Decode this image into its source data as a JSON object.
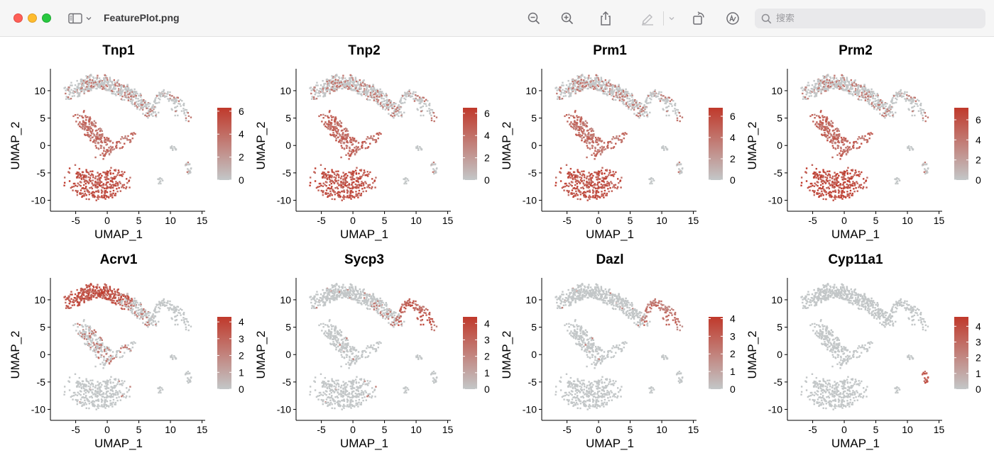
{
  "window": {
    "title": "FeaturePlot.png",
    "search_placeholder": "搜索"
  },
  "toolbar": {
    "icons": [
      "sidebar-icon",
      "zoom-out-icon",
      "zoom-in-icon",
      "share-icon",
      "markup-pen-icon",
      "rotate-icon",
      "annotate-icon",
      "search-icon"
    ]
  },
  "chart_data": [
    {
      "type": "scatter",
      "title": "Tnp1",
      "xlabel": "UMAP_1",
      "ylabel": "UMAP_2",
      "xlim": [
        -9,
        15.5
      ],
      "ylim": [
        -12,
        14
      ],
      "xticks": [
        "-5",
        "0",
        "5",
        "10",
        "15"
      ],
      "yticks": [
        "-10",
        "-5",
        "0",
        "5",
        "10"
      ],
      "legend": {
        "position": "right",
        "ticks": [
          "0",
          "2",
          "4",
          "6"
        ],
        "max": 6.3,
        "low_color": "#c3c7c8",
        "high_color": "#c0392b"
      }
    },
    {
      "type": "scatter",
      "title": "Tnp2",
      "xlabel": "UMAP_1",
      "ylabel": "UMAP_2",
      "xlim": [
        -9,
        15.5
      ],
      "ylim": [
        -12,
        14
      ],
      "xticks": [
        "-5",
        "0",
        "5",
        "10",
        "15"
      ],
      "yticks": [
        "-10",
        "-5",
        "0",
        "5",
        "10"
      ],
      "legend": {
        "position": "right",
        "ticks": [
          "0",
          "2",
          "4",
          "6"
        ],
        "max": 6.5,
        "low_color": "#c3c7c8",
        "high_color": "#c0392b"
      }
    },
    {
      "type": "scatter",
      "title": "Prm1",
      "xlabel": "UMAP_1",
      "ylabel": "UMAP_2",
      "xlim": [
        -9,
        15.5
      ],
      "ylim": [
        -12,
        14
      ],
      "xticks": [
        "-5",
        "0",
        "5",
        "10",
        "15"
      ],
      "yticks": [
        "-10",
        "-5",
        "0",
        "5",
        "10"
      ],
      "legend": {
        "position": "right",
        "ticks": [
          "0",
          "2",
          "4",
          "6"
        ],
        "max": 6.8,
        "low_color": "#c3c7c8",
        "high_color": "#c0392b"
      }
    },
    {
      "type": "scatter",
      "title": "Prm2",
      "xlabel": "UMAP_1",
      "ylabel": "UMAP_2",
      "xlim": [
        -9,
        15.5
      ],
      "ylim": [
        -12,
        14
      ],
      "xticks": [
        "-5",
        "0",
        "5",
        "10",
        "15"
      ],
      "yticks": [
        "-10",
        "-5",
        "0",
        "5",
        "10"
      ],
      "legend": {
        "position": "right",
        "ticks": [
          "0",
          "2",
          "4",
          "6"
        ],
        "max": 7.2,
        "low_color": "#c3c7c8",
        "high_color": "#c0392b"
      }
    },
    {
      "type": "scatter",
      "title": "Acrv1",
      "xlabel": "UMAP_1",
      "ylabel": "UMAP_2",
      "xlim": [
        -9,
        15.5
      ],
      "ylim": [
        -12,
        14
      ],
      "xticks": [
        "-5",
        "0",
        "5",
        "10",
        "15"
      ],
      "yticks": [
        "-10",
        "-5",
        "0",
        "5",
        "10"
      ],
      "legend": {
        "position": "right",
        "ticks": [
          "0",
          "1",
          "2",
          "3",
          "4"
        ],
        "max": 4.3,
        "low_color": "#c3c7c8",
        "high_color": "#c0392b"
      }
    },
    {
      "type": "scatter",
      "title": "Sycp3",
      "xlabel": "UMAP_1",
      "ylabel": "UMAP_2",
      "xlim": [
        -9,
        15.5
      ],
      "ylim": [
        -12,
        14
      ],
      "xticks": [
        "-5",
        "0",
        "5",
        "10",
        "15"
      ],
      "yticks": [
        "-10",
        "-5",
        "0",
        "5",
        "10"
      ],
      "legend": {
        "position": "right",
        "ticks": [
          "0",
          "1",
          "2",
          "3",
          "4"
        ],
        "max": 4.4,
        "low_color": "#c3c7c8",
        "high_color": "#c0392b"
      }
    },
    {
      "type": "scatter",
      "title": "Dazl",
      "xlabel": "UMAP_1",
      "ylabel": "UMAP_2",
      "xlim": [
        -9,
        15.5
      ],
      "ylim": [
        -12,
        14
      ],
      "xticks": [
        "-5",
        "0",
        "5",
        "10",
        "15"
      ],
      "yticks": [
        "-10",
        "-5",
        "0",
        "5",
        "10"
      ],
      "legend": {
        "position": "right",
        "ticks": [
          "0",
          "1",
          "2",
          "3",
          "4"
        ],
        "max": 4.1,
        "low_color": "#c3c7c8",
        "high_color": "#c0392b"
      }
    },
    {
      "type": "scatter",
      "title": "Cyp11a1",
      "xlabel": "UMAP_1",
      "ylabel": "UMAP_2",
      "xlim": [
        -9,
        15.5
      ],
      "ylim": [
        -12,
        14
      ],
      "xticks": [
        "-5",
        "0",
        "5",
        "10",
        "15"
      ],
      "yticks": [
        "-10",
        "-5",
        "0",
        "5",
        "10"
      ],
      "legend": {
        "position": "right",
        "ticks": [
          "0",
          "1",
          "2",
          "3",
          "4"
        ],
        "max": 4.6,
        "low_color": "#c3c7c8",
        "high_color": "#c0392b"
      }
    }
  ]
}
